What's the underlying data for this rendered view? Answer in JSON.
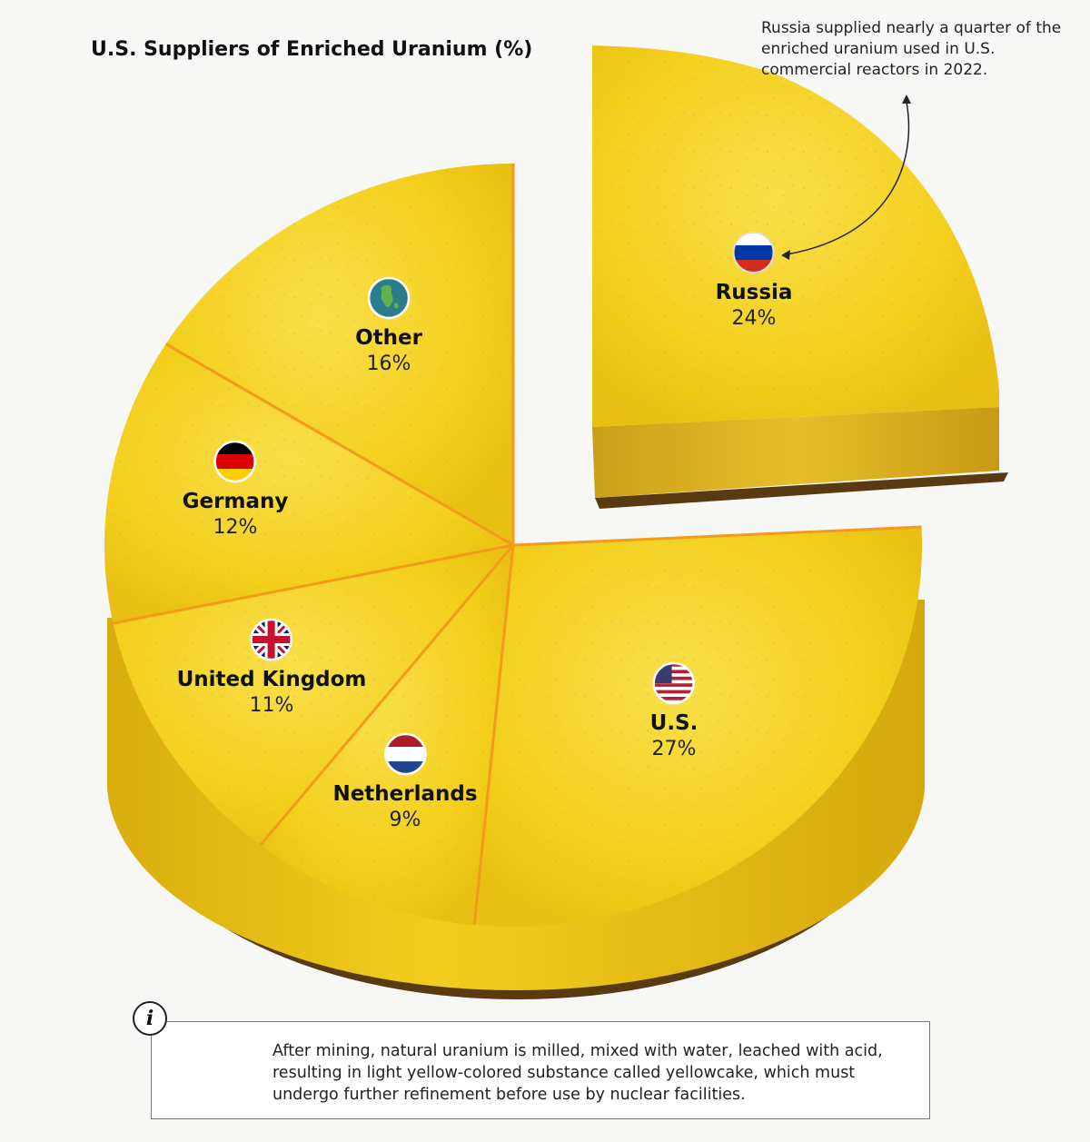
{
  "chart_data": {
    "type": "pie",
    "title": "U.S. Suppliers of Enriched Uranium (%)",
    "slices": [
      {
        "label": "U.S.",
        "value": 27,
        "flag": "us-flag"
      },
      {
        "label": "Netherlands",
        "value": 9,
        "flag": "netherlands-flag"
      },
      {
        "label": "United Kingdom",
        "value": 11,
        "flag": "uk-flag"
      },
      {
        "label": "Germany",
        "value": 12,
        "flag": "germany-flag"
      },
      {
        "label": "Other",
        "value": 16,
        "flag": "globe-icon"
      },
      {
        "label": "Russia",
        "value": 24,
        "flag": "russia-flag",
        "exploded": true
      }
    ],
    "annotations": [
      "Russia supplied nearly a quarter of the enriched uranium used in U.S. commercial reactors in 2022."
    ]
  },
  "labels": {
    "us": {
      "name": "U.S.",
      "pct": "27%"
    },
    "netherlands": {
      "name": "Netherlands",
      "pct": "9%"
    },
    "uk": {
      "name": "United Kingdom",
      "pct": "11%"
    },
    "germany": {
      "name": "Germany",
      "pct": "12%"
    },
    "other": {
      "name": "Other",
      "pct": "16%"
    },
    "russia": {
      "name": "Russia",
      "pct": "24%"
    }
  },
  "annotation": "Russia supplied nearly a quarter of the enriched uranium used in U.S. commercial reactors in 2022.",
  "info": {
    "icon": "i",
    "text": "After mining, natural uranium is milled, mixed with water, leached with acid, resulting in light yellow-colored substance called yellowcake, which must undergo further refinement before use by nuclear facilities."
  },
  "colors": {
    "cake_top": "#f5d31f",
    "cake_side": "#e9c414",
    "divider": "#f39a1a",
    "crust": "#5a3a12"
  }
}
